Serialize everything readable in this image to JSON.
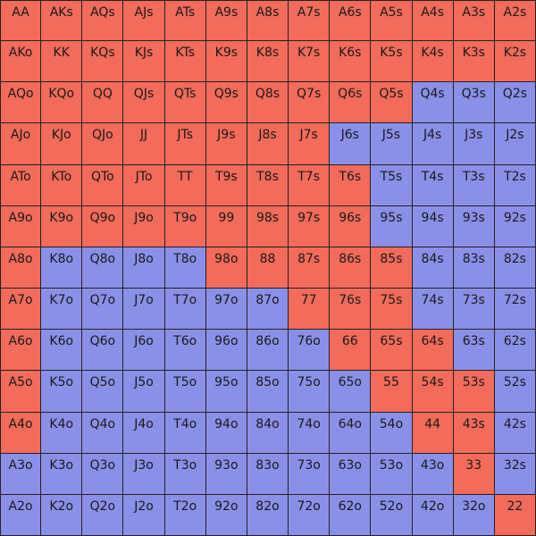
{
  "colors": {
    "raise": "#F26B5B",
    "fold": "#8A90E8"
  },
  "range": {
    "rows": [
      [
        {
          "label": "AA",
          "action": "raise"
        },
        {
          "label": "AKs",
          "action": "raise"
        },
        {
          "label": "AQs",
          "action": "raise"
        },
        {
          "label": "AJs",
          "action": "raise"
        },
        {
          "label": "ATs",
          "action": "raise"
        },
        {
          "label": "A9s",
          "action": "raise"
        },
        {
          "label": "A8s",
          "action": "raise"
        },
        {
          "label": "A7s",
          "action": "raise"
        },
        {
          "label": "A6s",
          "action": "raise"
        },
        {
          "label": "A5s",
          "action": "raise"
        },
        {
          "label": "A4s",
          "action": "raise"
        },
        {
          "label": "A3s",
          "action": "raise"
        },
        {
          "label": "A2s",
          "action": "raise"
        }
      ],
      [
        {
          "label": "AKo",
          "action": "raise"
        },
        {
          "label": "KK",
          "action": "raise"
        },
        {
          "label": "KQs",
          "action": "raise"
        },
        {
          "label": "KJs",
          "action": "raise"
        },
        {
          "label": "KTs",
          "action": "raise"
        },
        {
          "label": "K9s",
          "action": "raise"
        },
        {
          "label": "K8s",
          "action": "raise"
        },
        {
          "label": "K7s",
          "action": "raise"
        },
        {
          "label": "K6s",
          "action": "raise"
        },
        {
          "label": "K5s",
          "action": "raise"
        },
        {
          "label": "K4s",
          "action": "raise"
        },
        {
          "label": "K3s",
          "action": "raise"
        },
        {
          "label": "K2s",
          "action": "raise"
        }
      ],
      [
        {
          "label": "AQo",
          "action": "raise"
        },
        {
          "label": "KQo",
          "action": "raise"
        },
        {
          "label": "QQ",
          "action": "raise"
        },
        {
          "label": "QJs",
          "action": "raise"
        },
        {
          "label": "QTs",
          "action": "raise"
        },
        {
          "label": "Q9s",
          "action": "raise"
        },
        {
          "label": "Q8s",
          "action": "raise"
        },
        {
          "label": "Q7s",
          "action": "raise"
        },
        {
          "label": "Q6s",
          "action": "raise"
        },
        {
          "label": "Q5s",
          "action": "raise"
        },
        {
          "label": "Q4s",
          "action": "fold"
        },
        {
          "label": "Q3s",
          "action": "fold"
        },
        {
          "label": "Q2s",
          "action": "fold"
        }
      ],
      [
        {
          "label": "AJo",
          "action": "raise"
        },
        {
          "label": "KJo",
          "action": "raise"
        },
        {
          "label": "QJo",
          "action": "raise"
        },
        {
          "label": "JJ",
          "action": "raise"
        },
        {
          "label": "JTs",
          "action": "raise"
        },
        {
          "label": "J9s",
          "action": "raise"
        },
        {
          "label": "J8s",
          "action": "raise"
        },
        {
          "label": "J7s",
          "action": "raise"
        },
        {
          "label": "J6s",
          "action": "fold"
        },
        {
          "label": "J5s",
          "action": "fold"
        },
        {
          "label": "J4s",
          "action": "fold"
        },
        {
          "label": "J3s",
          "action": "fold"
        },
        {
          "label": "J2s",
          "action": "fold"
        }
      ],
      [
        {
          "label": "ATo",
          "action": "raise"
        },
        {
          "label": "KTo",
          "action": "raise"
        },
        {
          "label": "QTo",
          "action": "raise"
        },
        {
          "label": "JTo",
          "action": "raise"
        },
        {
          "label": "TT",
          "action": "raise"
        },
        {
          "label": "T9s",
          "action": "raise"
        },
        {
          "label": "T8s",
          "action": "raise"
        },
        {
          "label": "T7s",
          "action": "raise"
        },
        {
          "label": "T6s",
          "action": "raise"
        },
        {
          "label": "T5s",
          "action": "fold"
        },
        {
          "label": "T4s",
          "action": "fold"
        },
        {
          "label": "T3s",
          "action": "fold"
        },
        {
          "label": "T2s",
          "action": "fold"
        }
      ],
      [
        {
          "label": "A9o",
          "action": "raise"
        },
        {
          "label": "K9o",
          "action": "raise"
        },
        {
          "label": "Q9o",
          "action": "raise"
        },
        {
          "label": "J9o",
          "action": "raise"
        },
        {
          "label": "T9o",
          "action": "raise"
        },
        {
          "label": "99",
          "action": "raise"
        },
        {
          "label": "98s",
          "action": "raise"
        },
        {
          "label": "97s",
          "action": "raise"
        },
        {
          "label": "96s",
          "action": "raise"
        },
        {
          "label": "95s",
          "action": "fold"
        },
        {
          "label": "94s",
          "action": "fold"
        },
        {
          "label": "93s",
          "action": "fold"
        },
        {
          "label": "92s",
          "action": "fold"
        }
      ],
      [
        {
          "label": "A8o",
          "action": "raise"
        },
        {
          "label": "K8o",
          "action": "fold"
        },
        {
          "label": "Q8o",
          "action": "fold"
        },
        {
          "label": "J8o",
          "action": "fold"
        },
        {
          "label": "T8o",
          "action": "fold"
        },
        {
          "label": "98o",
          "action": "raise"
        },
        {
          "label": "88",
          "action": "raise"
        },
        {
          "label": "87s",
          "action": "raise"
        },
        {
          "label": "86s",
          "action": "raise"
        },
        {
          "label": "85s",
          "action": "raise"
        },
        {
          "label": "84s",
          "action": "fold"
        },
        {
          "label": "83s",
          "action": "fold"
        },
        {
          "label": "82s",
          "action": "fold"
        }
      ],
      [
        {
          "label": "A7o",
          "action": "raise"
        },
        {
          "label": "K7o",
          "action": "fold"
        },
        {
          "label": "Q7o",
          "action": "fold"
        },
        {
          "label": "J7o",
          "action": "fold"
        },
        {
          "label": "T7o",
          "action": "fold"
        },
        {
          "label": "97o",
          "action": "fold"
        },
        {
          "label": "87o",
          "action": "fold"
        },
        {
          "label": "77",
          "action": "raise"
        },
        {
          "label": "76s",
          "action": "raise"
        },
        {
          "label": "75s",
          "action": "raise"
        },
        {
          "label": "74s",
          "action": "fold"
        },
        {
          "label": "73s",
          "action": "fold"
        },
        {
          "label": "72s",
          "action": "fold"
        }
      ],
      [
        {
          "label": "A6o",
          "action": "raise"
        },
        {
          "label": "K6o",
          "action": "fold"
        },
        {
          "label": "Q6o",
          "action": "fold"
        },
        {
          "label": "J6o",
          "action": "fold"
        },
        {
          "label": "T6o",
          "action": "fold"
        },
        {
          "label": "96o",
          "action": "fold"
        },
        {
          "label": "86o",
          "action": "fold"
        },
        {
          "label": "76o",
          "action": "fold"
        },
        {
          "label": "66",
          "action": "raise"
        },
        {
          "label": "65s",
          "action": "raise"
        },
        {
          "label": "64s",
          "action": "raise"
        },
        {
          "label": "63s",
          "action": "fold"
        },
        {
          "label": "62s",
          "action": "fold"
        }
      ],
      [
        {
          "label": "A5o",
          "action": "raise"
        },
        {
          "label": "K5o",
          "action": "fold"
        },
        {
          "label": "Q5o",
          "action": "fold"
        },
        {
          "label": "J5o",
          "action": "fold"
        },
        {
          "label": "T5o",
          "action": "fold"
        },
        {
          "label": "95o",
          "action": "fold"
        },
        {
          "label": "85o",
          "action": "fold"
        },
        {
          "label": "75o",
          "action": "fold"
        },
        {
          "label": "65o",
          "action": "fold"
        },
        {
          "label": "55",
          "action": "raise"
        },
        {
          "label": "54s",
          "action": "raise"
        },
        {
          "label": "53s",
          "action": "raise"
        },
        {
          "label": "52s",
          "action": "fold"
        }
      ],
      [
        {
          "label": "A4o",
          "action": "raise"
        },
        {
          "label": "K4o",
          "action": "fold"
        },
        {
          "label": "Q4o",
          "action": "fold"
        },
        {
          "label": "J4o",
          "action": "fold"
        },
        {
          "label": "T4o",
          "action": "fold"
        },
        {
          "label": "94o",
          "action": "fold"
        },
        {
          "label": "84o",
          "action": "fold"
        },
        {
          "label": "74o",
          "action": "fold"
        },
        {
          "label": "64o",
          "action": "fold"
        },
        {
          "label": "54o",
          "action": "fold"
        },
        {
          "label": "44",
          "action": "raise"
        },
        {
          "label": "43s",
          "action": "raise"
        },
        {
          "label": "42s",
          "action": "fold"
        }
      ],
      [
        {
          "label": "A3o",
          "action": "fold"
        },
        {
          "label": "K3o",
          "action": "fold"
        },
        {
          "label": "Q3o",
          "action": "fold"
        },
        {
          "label": "J3o",
          "action": "fold"
        },
        {
          "label": "T3o",
          "action": "fold"
        },
        {
          "label": "93o",
          "action": "fold"
        },
        {
          "label": "83o",
          "action": "fold"
        },
        {
          "label": "73o",
          "action": "fold"
        },
        {
          "label": "63o",
          "action": "fold"
        },
        {
          "label": "53o",
          "action": "fold"
        },
        {
          "label": "43o",
          "action": "fold"
        },
        {
          "label": "33",
          "action": "raise"
        },
        {
          "label": "32s",
          "action": "fold"
        }
      ],
      [
        {
          "label": "A2o",
          "action": "fold"
        },
        {
          "label": "K2o",
          "action": "fold"
        },
        {
          "label": "Q2o",
          "action": "fold"
        },
        {
          "label": "J2o",
          "action": "fold"
        },
        {
          "label": "T2o",
          "action": "fold"
        },
        {
          "label": "92o",
          "action": "fold"
        },
        {
          "label": "82o",
          "action": "fold"
        },
        {
          "label": "72o",
          "action": "fold"
        },
        {
          "label": "62o",
          "action": "fold"
        },
        {
          "label": "52o",
          "action": "fold"
        },
        {
          "label": "42o",
          "action": "fold"
        },
        {
          "label": "32o",
          "action": "fold"
        },
        {
          "label": "22",
          "action": "raise"
        }
      ]
    ]
  }
}
